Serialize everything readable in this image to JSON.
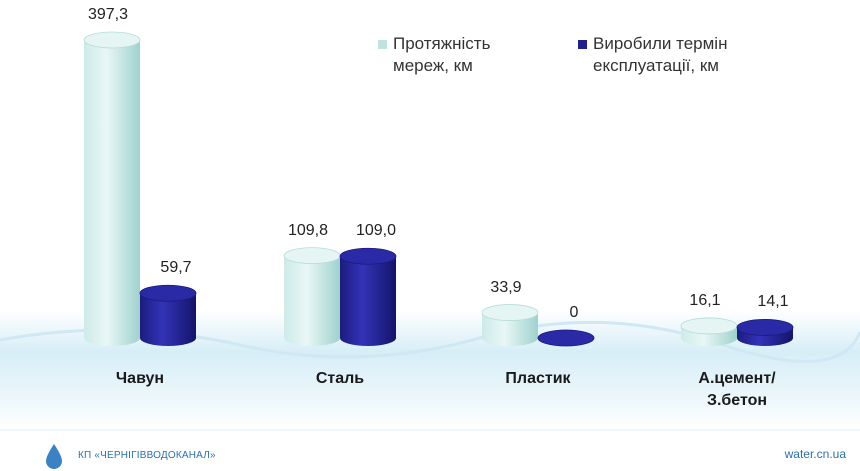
{
  "chart_data": {
    "type": "bar",
    "categories": [
      "Чавун",
      "Сталь",
      "Пластик",
      "А.цемент/ З.бетон"
    ],
    "series": [
      {
        "name": "Протяжність мереж, км",
        "color": "#bfe4e0",
        "values": [
          397.3,
          109.8,
          33.9,
          16.1
        ],
        "value_labels": [
          "397,3",
          "109,8",
          "33,9",
          "16,1"
        ]
      },
      {
        "name": "Виробили термін експлуатації, км",
        "color": "#22228f",
        "values": [
          59.7,
          109.0,
          0,
          14.1
        ],
        "value_labels": [
          "59,7",
          "109,0",
          "0",
          "14,1"
        ]
      }
    ],
    "legend": "top-right"
  },
  "footer": {
    "left": "КП «ЧЕРНІГІВВОДОКАНАЛ»",
    "right": "water.cn.ua"
  }
}
